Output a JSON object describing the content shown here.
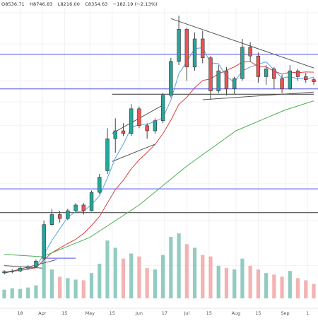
{
  "header": {
    "open": "O8536.71",
    "high": "H8746.83",
    "low": "L8216.00",
    "close": "C8354.63",
    "change": "−182.19 (−2.13%)"
  },
  "chart_data": {
    "type": "candlestick",
    "x_tick_labels": [
      "18",
      "Apr",
      "15",
      "May",
      "15",
      "Jun",
      "17",
      "Jul",
      "15",
      "Aug",
      "15",
      "Sep",
      "1"
    ],
    "x_tick_dates": [
      "2019-03-18",
      "2019-04-01",
      "2019-04-15",
      "2019-05-01",
      "2019-05-15",
      "2019-06-01",
      "2019-06-17",
      "2019-07-01",
      "2019-07-15",
      "2019-08-01",
      "2019-08-15",
      "2019-09-01",
      "2019-09-15"
    ],
    "xlim": [
      "2019-03-08",
      "2019-09-19"
    ],
    "ylim": [
      3400,
      14300
    ],
    "y_scale": "log",
    "grid": true,
    "candles": [
      {
        "date": "2019-03-08",
        "o": 3860,
        "h": 3910,
        "l": 3830,
        "c": 3880
      },
      {
        "date": "2019-03-13",
        "o": 3880,
        "h": 3930,
        "l": 3850,
        "c": 3895
      },
      {
        "date": "2019-03-18",
        "o": 3895,
        "h": 3980,
        "l": 3870,
        "c": 3950
      },
      {
        "date": "2019-03-23",
        "o": 3950,
        "h": 4010,
        "l": 3920,
        "c": 3980
      },
      {
        "date": "2019-03-28",
        "o": 3980,
        "h": 4120,
        "l": 3960,
        "c": 4090
      },
      {
        "date": "2019-04-02",
        "o": 4150,
        "h": 5000,
        "l": 4120,
        "c": 4900
      },
      {
        "date": "2019-04-07",
        "o": 4900,
        "h": 5300,
        "l": 4870,
        "c": 5150
      },
      {
        "date": "2019-04-12",
        "o": 5150,
        "h": 5250,
        "l": 4950,
        "c": 5050
      },
      {
        "date": "2019-04-17",
        "o": 5050,
        "h": 5300,
        "l": 5010,
        "c": 5250
      },
      {
        "date": "2019-04-22",
        "o": 5250,
        "h": 5450,
        "l": 5200,
        "c": 5400
      },
      {
        "date": "2019-04-27",
        "o": 5400,
        "h": 5450,
        "l": 5150,
        "c": 5250
      },
      {
        "date": "2019-05-02",
        "o": 5250,
        "h": 5800,
        "l": 5230,
        "c": 5750
      },
      {
        "date": "2019-05-07",
        "o": 5750,
        "h": 6300,
        "l": 5700,
        "c": 6200
      },
      {
        "date": "2019-05-12",
        "o": 6400,
        "h": 7900,
        "l": 6300,
        "c": 7500
      },
      {
        "date": "2019-05-17",
        "o": 7500,
        "h": 8300,
        "l": 7000,
        "c": 7800
      },
      {
        "date": "2019-05-22",
        "o": 7800,
        "h": 8100,
        "l": 7600,
        "c": 7700
      },
      {
        "date": "2019-05-27",
        "o": 7700,
        "h": 8900,
        "l": 7600,
        "c": 8700
      },
      {
        "date": "2019-06-01",
        "o": 8700,
        "h": 8800,
        "l": 7900,
        "c": 8000
      },
      {
        "date": "2019-06-06",
        "o": 8000,
        "h": 8100,
        "l": 7500,
        "c": 7800
      },
      {
        "date": "2019-06-11",
        "o": 7800,
        "h": 8300,
        "l": 7700,
        "c": 8200
      },
      {
        "date": "2019-06-16",
        "o": 8200,
        "h": 9400,
        "l": 8100,
        "c": 9300
      },
      {
        "date": "2019-06-21",
        "o": 9300,
        "h": 11200,
        "l": 9200,
        "c": 11000
      },
      {
        "date": "2019-06-26",
        "o": 11000,
        "h": 13800,
        "l": 10800,
        "c": 12900
      },
      {
        "date": "2019-07-01",
        "o": 12900,
        "h": 13000,
        "l": 10000,
        "c": 10700
      },
      {
        "date": "2019-07-06",
        "o": 10700,
        "h": 12700,
        "l": 10500,
        "c": 12300
      },
      {
        "date": "2019-07-11",
        "o": 12300,
        "h": 12800,
        "l": 10900,
        "c": 11200
      },
      {
        "date": "2019-07-16",
        "o": 11200,
        "h": 11300,
        "l": 9100,
        "c": 9500
      },
      {
        "date": "2019-07-21",
        "o": 9500,
        "h": 10800,
        "l": 9400,
        "c": 10500
      },
      {
        "date": "2019-07-26",
        "o": 10500,
        "h": 10700,
        "l": 9300,
        "c": 9600
      },
      {
        "date": "2019-07-31",
        "o": 9600,
        "h": 10200,
        "l": 9350,
        "c": 10100
      },
      {
        "date": "2019-08-05",
        "o": 10100,
        "h": 12300,
        "l": 10000,
        "c": 11800
      },
      {
        "date": "2019-08-10",
        "o": 11800,
        "h": 12100,
        "l": 11000,
        "c": 11300
      },
      {
        "date": "2019-08-15",
        "o": 11300,
        "h": 11500,
        "l": 9900,
        "c": 10200
      },
      {
        "date": "2019-08-20",
        "o": 10200,
        "h": 10800,
        "l": 9800,
        "c": 10600
      },
      {
        "date": "2019-08-25",
        "o": 10600,
        "h": 10700,
        "l": 9600,
        "c": 10100
      },
      {
        "date": "2019-08-30",
        "o": 10100,
        "h": 10300,
        "l": 9400,
        "c": 9600
      },
      {
        "date": "2019-09-04",
        "o": 9600,
        "h": 10800,
        "l": 9550,
        "c": 10500
      },
      {
        "date": "2019-09-09",
        "o": 10500,
        "h": 10600,
        "l": 10000,
        "c": 10200
      },
      {
        "date": "2019-09-14",
        "o": 10200,
        "h": 10400,
        "l": 9900,
        "c": 10050
      },
      {
        "date": "2019-09-19",
        "o": 10050,
        "h": 10150,
        "l": 9800,
        "c": 9950
      }
    ],
    "volume": [
      12,
      14,
      13,
      15,
      18,
      55,
      40,
      30,
      28,
      26,
      25,
      35,
      48,
      80,
      70,
      55,
      62,
      58,
      42,
      40,
      60,
      85,
      90,
      75,
      70,
      60,
      58,
      45,
      42,
      40,
      55,
      45,
      40,
      35,
      33,
      30,
      38,
      28,
      25,
      20
    ],
    "horizontal_levels": [
      {
        "price": 11400,
        "color": "#4a4af0"
      },
      {
        "price": 9600,
        "color": "#4a4af0"
      },
      {
        "price": 5850,
        "color": "#4a4af0"
      },
      {
        "price": 5200,
        "color": "#333333"
      }
    ],
    "moving_averages": [
      {
        "color": "#5aa0e8",
        "period": 20
      },
      {
        "color": "#d94040",
        "period": 50
      },
      {
        "color": "#4caf50",
        "period": 200
      }
    ],
    "ma200_points": [
      {
        "date": "2019-03-08",
        "v": 4230
      },
      {
        "date": "2019-04-01",
        "v": 4180
      },
      {
        "date": "2019-05-01",
        "v": 4600
      },
      {
        "date": "2019-06-01",
        "v": 5400
      },
      {
        "date": "2019-07-01",
        "v": 6550
      },
      {
        "date": "2019-08-01",
        "v": 7800
      },
      {
        "date": "2019-09-01",
        "v": 8650
      },
      {
        "date": "2019-09-19",
        "v": 9050
      }
    ],
    "trendlines": [
      {
        "from": {
          "date": "2019-06-21",
          "v": 13600
        },
        "to": {
          "date": "2019-09-19",
          "v": 10650
        }
      },
      {
        "from": {
          "date": "2019-07-11",
          "v": 9100
        },
        "to": {
          "date": "2019-09-19",
          "v": 9450
        }
      },
      {
        "from": {
          "date": "2019-05-15",
          "v": 7700
        },
        "to": {
          "date": "2019-06-17",
          "v": 8900
        }
      },
      {
        "from": {
          "date": "2019-05-15",
          "v": 6700
        },
        "to": {
          "date": "2019-06-11",
          "v": 7300
        }
      },
      {
        "from": {
          "date": "2019-03-08",
          "v": 4000
        },
        "to": {
          "date": "2019-04-01",
          "v": 3950
        }
      },
      {
        "from": {
          "date": "2019-03-08",
          "v": 3850
        },
        "to": {
          "date": "2019-04-10",
          "v": 4120
        }
      }
    ],
    "ranged_levels": [
      {
        "from": "2019-05-15",
        "to": "2019-09-19",
        "price": 9350,
        "color": "#333333"
      },
      {
        "from": "2019-04-01",
        "to": "2019-04-22",
        "price": 4150,
        "color": "#4a4af0"
      }
    ]
  }
}
